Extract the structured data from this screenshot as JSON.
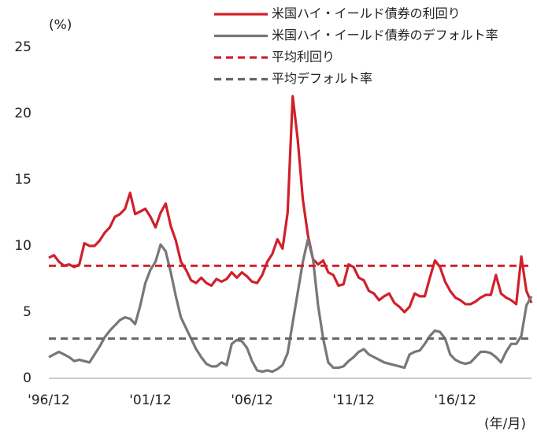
{
  "chart_data": {
    "type": "line",
    "y_label": "(%)",
    "x_label": "(年/月)",
    "x": [
      "'96/12",
      "'97/03",
      "'97/06",
      "'97/09",
      "'97/12",
      "'98/03",
      "'98/06",
      "'98/09",
      "'98/12",
      "'99/03",
      "'99/06",
      "'99/09",
      "'99/12",
      "'00/03",
      "'00/06",
      "'00/09",
      "'00/12",
      "'01/03",
      "'01/06",
      "'01/09",
      "'01/12",
      "'02/03",
      "'02/06",
      "'02/09",
      "'02/12",
      "'03/03",
      "'03/06",
      "'03/09",
      "'03/12",
      "'04/03",
      "'04/06",
      "'04/09",
      "'04/12",
      "'05/03",
      "'05/06",
      "'05/09",
      "'05/12",
      "'06/03",
      "'06/06",
      "'06/09",
      "'06/12",
      "'07/03",
      "'07/06",
      "'07/09",
      "'07/12",
      "'08/03",
      "'08/06",
      "'08/09",
      "'08/12",
      "'09/03",
      "'09/06",
      "'09/09",
      "'09/12",
      "'10/03",
      "'10/06",
      "'10/09",
      "'10/12",
      "'11/03",
      "'11/06",
      "'11/09",
      "'11/12",
      "'12/03",
      "'12/06",
      "'12/09",
      "'12/12",
      "'13/03",
      "'13/06",
      "'13/09",
      "'13/12",
      "'14/03",
      "'14/06",
      "'14/09",
      "'14/12",
      "'15/03",
      "'15/06",
      "'15/09",
      "'15/12",
      "'16/03",
      "'16/06",
      "'16/09",
      "'16/12",
      "'17/03",
      "'17/06",
      "'17/09",
      "'17/12",
      "'18/03",
      "'18/06",
      "'18/09",
      "'18/12",
      "'19/03",
      "'19/06",
      "'19/09",
      "'19/12",
      "'20/03",
      "'20/06",
      "'20/09"
    ],
    "xticks": [
      "'96/12",
      "'01/12",
      "'06/12",
      "'11/12",
      "'16/12"
    ],
    "ylim": [
      0,
      25
    ],
    "yticks": [
      0,
      5,
      10,
      15,
      20,
      25
    ],
    "series": [
      {
        "name": "米国ハイ・イールド債券の利回り",
        "color": "#d0202a",
        "values": [
          9.1,
          9.3,
          8.8,
          8.5,
          8.6,
          8.4,
          8.6,
          10.2,
          10.0,
          10.0,
          10.4,
          11.0,
          11.4,
          12.2,
          12.4,
          12.8,
          14.0,
          12.4,
          12.6,
          12.8,
          12.2,
          11.4,
          12.5,
          13.2,
          11.5,
          10.4,
          8.8,
          8.2,
          7.4,
          7.2,
          7.6,
          7.2,
          7.0,
          7.5,
          7.3,
          7.5,
          8.0,
          7.6,
          8.0,
          7.7,
          7.3,
          7.2,
          7.8,
          8.8,
          9.4,
          10.5,
          9.8,
          12.5,
          21.3,
          18.0,
          13.5,
          10.8,
          9.0,
          8.6,
          8.9,
          8.0,
          7.8,
          7.0,
          7.1,
          8.6,
          8.4,
          7.6,
          7.4,
          6.6,
          6.4,
          5.9,
          6.2,
          6.4,
          5.7,
          5.4,
          5.0,
          5.4,
          6.4,
          6.2,
          6.2,
          7.6,
          8.9,
          8.4,
          7.3,
          6.6,
          6.1,
          5.9,
          5.6,
          5.6,
          5.8,
          6.1,
          6.3,
          6.3,
          7.8,
          6.4,
          6.1,
          5.9,
          5.6,
          9.2,
          6.6,
          5.7
        ]
      },
      {
        "name": "米国ハイ・イールド債券のデフォルト率",
        "color": "#777777",
        "values": [
          1.6,
          1.8,
          2.0,
          1.8,
          1.6,
          1.3,
          1.4,
          1.3,
          1.2,
          1.8,
          2.4,
          3.1,
          3.6,
          4.0,
          4.4,
          4.6,
          4.5,
          4.1,
          5.5,
          7.2,
          8.2,
          8.8,
          10.1,
          9.6,
          8.0,
          6.2,
          4.6,
          3.8,
          3.0,
          2.2,
          1.6,
          1.1,
          0.9,
          0.9,
          1.2,
          1.0,
          2.6,
          2.9,
          2.8,
          2.3,
          1.3,
          0.6,
          0.5,
          0.6,
          0.5,
          0.7,
          1.0,
          1.9,
          4.2,
          6.5,
          8.8,
          10.5,
          9.0,
          5.5,
          3.0,
          1.2,
          0.8,
          0.8,
          0.9,
          1.3,
          1.6,
          2.0,
          2.2,
          1.8,
          1.6,
          1.4,
          1.2,
          1.1,
          1.0,
          0.9,
          0.8,
          1.8,
          2.0,
          2.1,
          2.6,
          3.2,
          3.6,
          3.5,
          3.0,
          1.8,
          1.4,
          1.2,
          1.1,
          1.2,
          1.6,
          2.0,
          2.0,
          1.9,
          1.6,
          1.2,
          2.0,
          2.6,
          2.6,
          3.2,
          5.5,
          6.2
        ]
      },
      {
        "name": "平均利回り",
        "color": "#d0202a",
        "value": 8.5,
        "dashed": true
      },
      {
        "name": "平均デフォルト率",
        "color": "#666666",
        "value": 3.0,
        "dashed": true
      }
    ]
  }
}
